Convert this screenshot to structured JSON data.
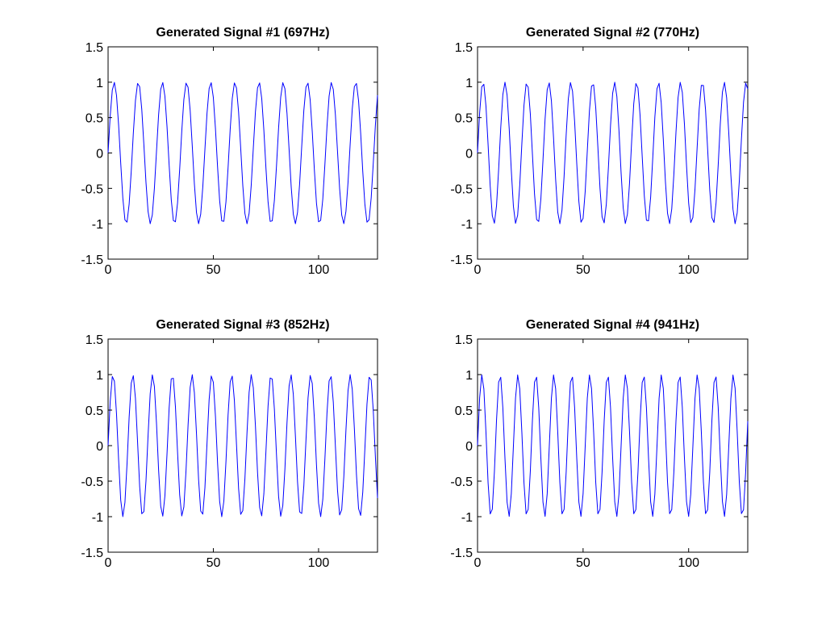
{
  "figure": {
    "background": "#ffffff"
  },
  "chart_data": [
    {
      "type": "line",
      "title": "Generated Signal #1 (697Hz)",
      "xlabel": "",
      "ylabel": "",
      "xlim": [
        0,
        128
      ],
      "ylim": [
        -1.5,
        1.5
      ],
      "xticks": [
        0,
        50,
        100
      ],
      "xtick_labels": [
        "0",
        "50",
        "100"
      ],
      "yticks": [
        -1.5,
        -1,
        -0.5,
        0,
        0.5,
        1,
        1.5
      ],
      "ytick_labels": [
        "-1.5",
        "-1",
        "-0.5",
        "0",
        "0.5",
        "1",
        "1.5"
      ],
      "grid": false,
      "legend": "none",
      "series": [
        {
          "color": "#0000ff",
          "function": "sin(2*pi*697*n/8000)",
          "sample_rate_hz": 8000,
          "frequency_hz": 697,
          "n_start": 0,
          "n_end": 128,
          "n_step": 1
        }
      ]
    },
    {
      "type": "line",
      "title": "Generated Signal #2 (770Hz)",
      "xlabel": "",
      "ylabel": "",
      "xlim": [
        0,
        128
      ],
      "ylim": [
        -1.5,
        1.5
      ],
      "xticks": [
        0,
        50,
        100
      ],
      "xtick_labels": [
        "0",
        "50",
        "100"
      ],
      "yticks": [
        -1.5,
        -1,
        -0.5,
        0,
        0.5,
        1,
        1.5
      ],
      "ytick_labels": [
        "-1.5",
        "-1",
        "-0.5",
        "0",
        "0.5",
        "1",
        "1.5"
      ],
      "grid": false,
      "legend": "none",
      "series": [
        {
          "color": "#0000ff",
          "function": "sin(2*pi*770*n/8000)",
          "sample_rate_hz": 8000,
          "frequency_hz": 770,
          "n_start": 0,
          "n_end": 128,
          "n_step": 1
        }
      ]
    },
    {
      "type": "line",
      "title": "Generated Signal #3 (852Hz)",
      "xlabel": "",
      "ylabel": "",
      "xlim": [
        0,
        128
      ],
      "ylim": [
        -1.5,
        1.5
      ],
      "xticks": [
        0,
        50,
        100
      ],
      "xtick_labels": [
        "0",
        "50",
        "100"
      ],
      "yticks": [
        -1.5,
        -1,
        -0.5,
        0,
        0.5,
        1,
        1.5
      ],
      "ytick_labels": [
        "-1.5",
        "-1",
        "-0.5",
        "0",
        "0.5",
        "1",
        "1.5"
      ],
      "grid": false,
      "legend": "none",
      "series": [
        {
          "color": "#0000ff",
          "function": "sin(2*pi*852*n/8000)",
          "sample_rate_hz": 8000,
          "frequency_hz": 852,
          "n_start": 0,
          "n_end": 128,
          "n_step": 1
        }
      ]
    },
    {
      "type": "line",
      "title": "Generated Signal #4 (941Hz)",
      "xlabel": "",
      "ylabel": "",
      "xlim": [
        0,
        128
      ],
      "ylim": [
        -1.5,
        1.5
      ],
      "xticks": [
        0,
        50,
        100
      ],
      "xtick_labels": [
        "0",
        "50",
        "100"
      ],
      "yticks": [
        -1.5,
        -1,
        -0.5,
        0,
        0.5,
        1,
        1.5
      ],
      "ytick_labels": [
        "-1.5",
        "-1",
        "-0.5",
        "0",
        "0.5",
        "1",
        "1.5"
      ],
      "grid": false,
      "legend": "none",
      "series": [
        {
          "color": "#0000ff",
          "function": "sin(2*pi*941*n/8000)",
          "sample_rate_hz": 8000,
          "frequency_hz": 941,
          "n_start": 0,
          "n_end": 128,
          "n_step": 1
        }
      ]
    }
  ]
}
